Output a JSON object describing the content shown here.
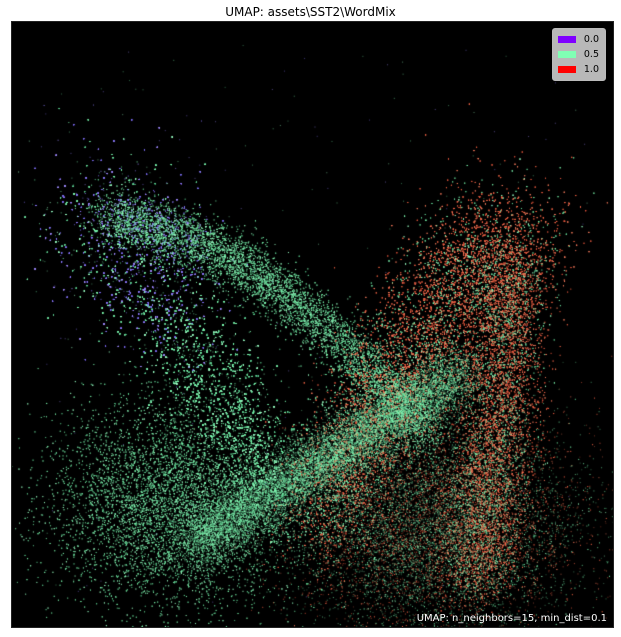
{
  "title": "UMAP: assets\\SST2\\WordMix",
  "annotation": "UMAP: n_neighbors=15, min_dist=0.1",
  "legend": [
    {
      "label": "0.0",
      "color": "#7f00ff"
    },
    {
      "label": "0.5",
      "color": "#80ffb4"
    },
    {
      "label": "1.0",
      "color": "#ff0000"
    }
  ],
  "chart_data": {
    "type": "scatter",
    "title": "UMAP: assets\\SST2\\WordMix",
    "xlabel": "",
    "ylabel": "",
    "background": "#000000",
    "color_scale": [
      "#7f00ff",
      "#80ffb4",
      "#ff0000"
    ],
    "legend_position": "top-right",
    "grid": false,
    "axis_ticks": false,
    "series": [
      {
        "name": "0.0",
        "color": "#7f00ff"
      },
      {
        "name": "0.5",
        "color": "#80ffb4"
      },
      {
        "name": "1.0",
        "color": "#ff0000"
      }
    ]
  }
}
